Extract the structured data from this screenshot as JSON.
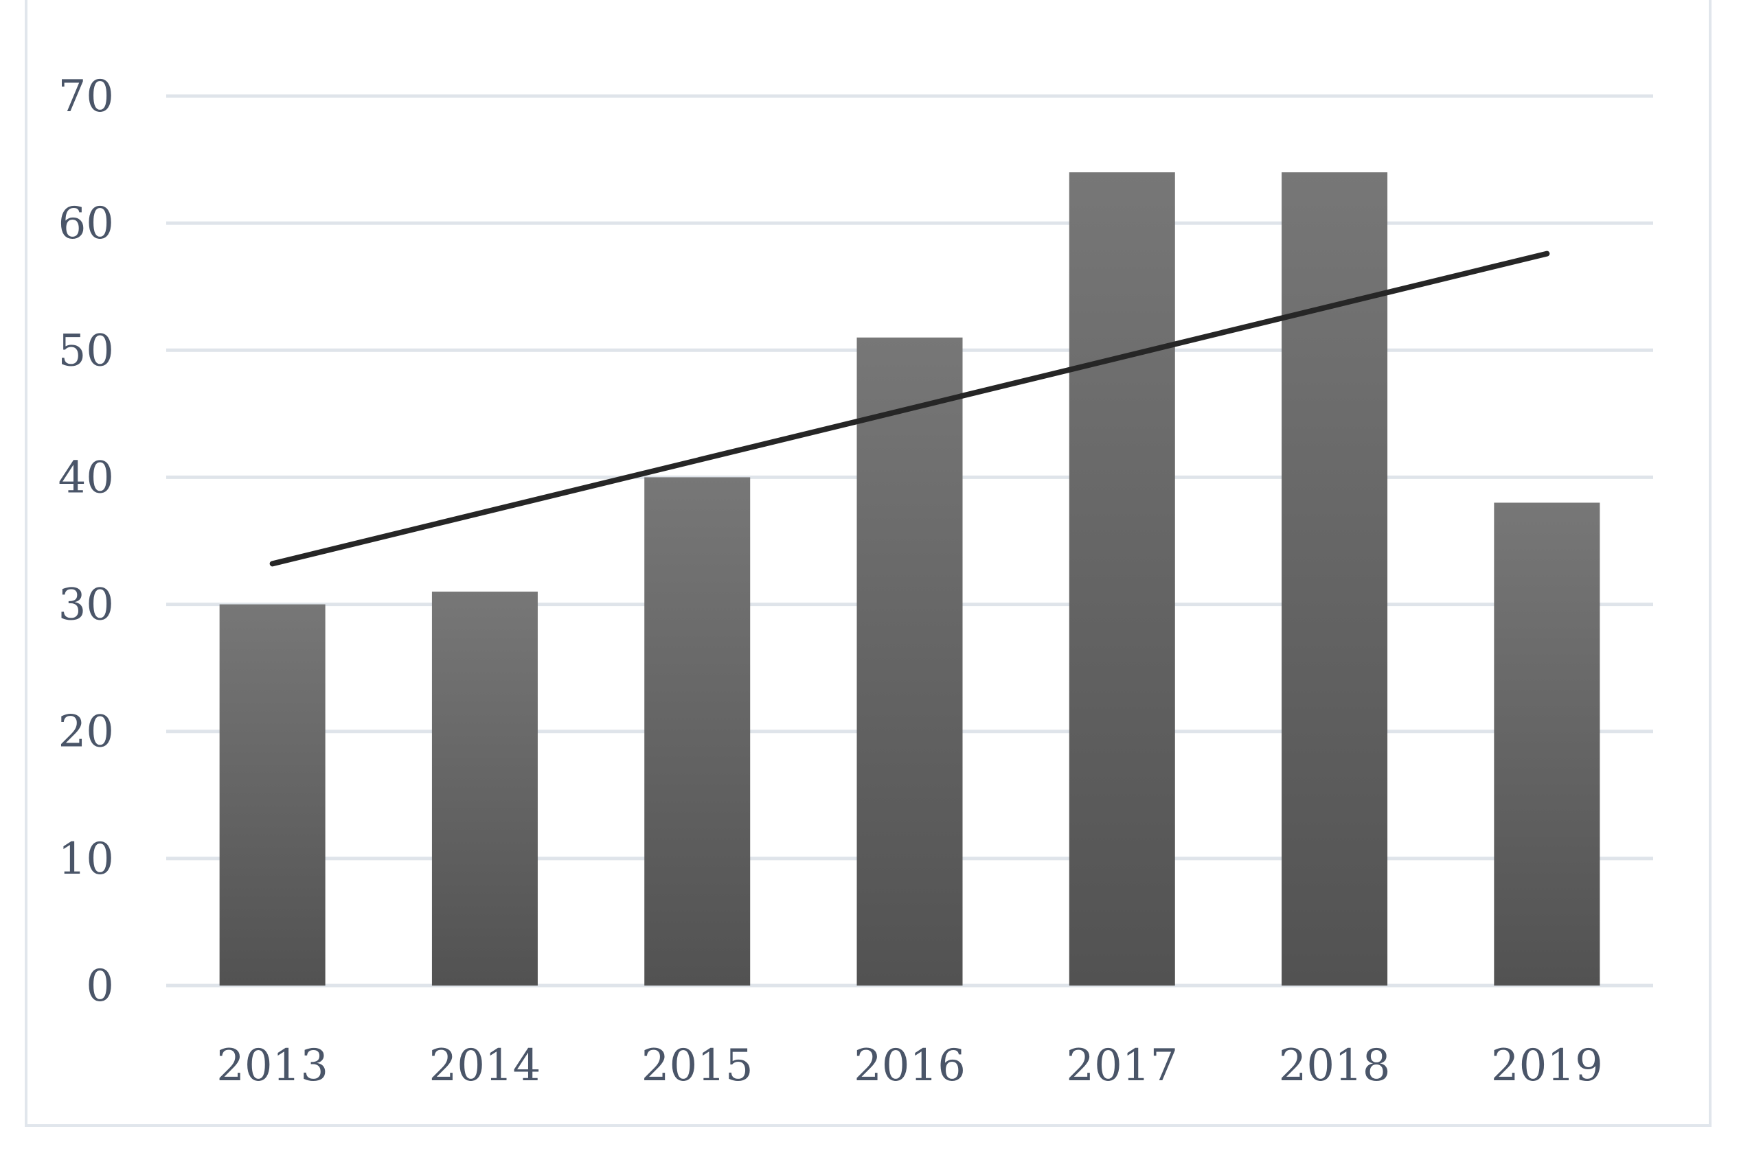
{
  "chart_data": {
    "type": "bar",
    "title": "",
    "xlabel": "",
    "ylabel": "",
    "categories": [
      "2013",
      "2014",
      "2015",
      "2016",
      "2017",
      "2018",
      "2019"
    ],
    "values": [
      30,
      31,
      40,
      51,
      64,
      64,
      38
    ],
    "ylim": [
      0,
      70
    ],
    "yticks": [
      "0",
      "10",
      "20",
      "30",
      "40",
      "50",
      "60",
      "70"
    ],
    "grid": true,
    "legend": "none",
    "trendline": {
      "type": "linear",
      "start_value": 33.2,
      "end_value": 57.6
    },
    "colors": {
      "bar_top": "#777777",
      "bar_bottom": "#525252",
      "trendline": "#262626",
      "grid": "#dfe4ea",
      "tick_text": "#4a5568",
      "frame": "#e1e6ec"
    }
  }
}
